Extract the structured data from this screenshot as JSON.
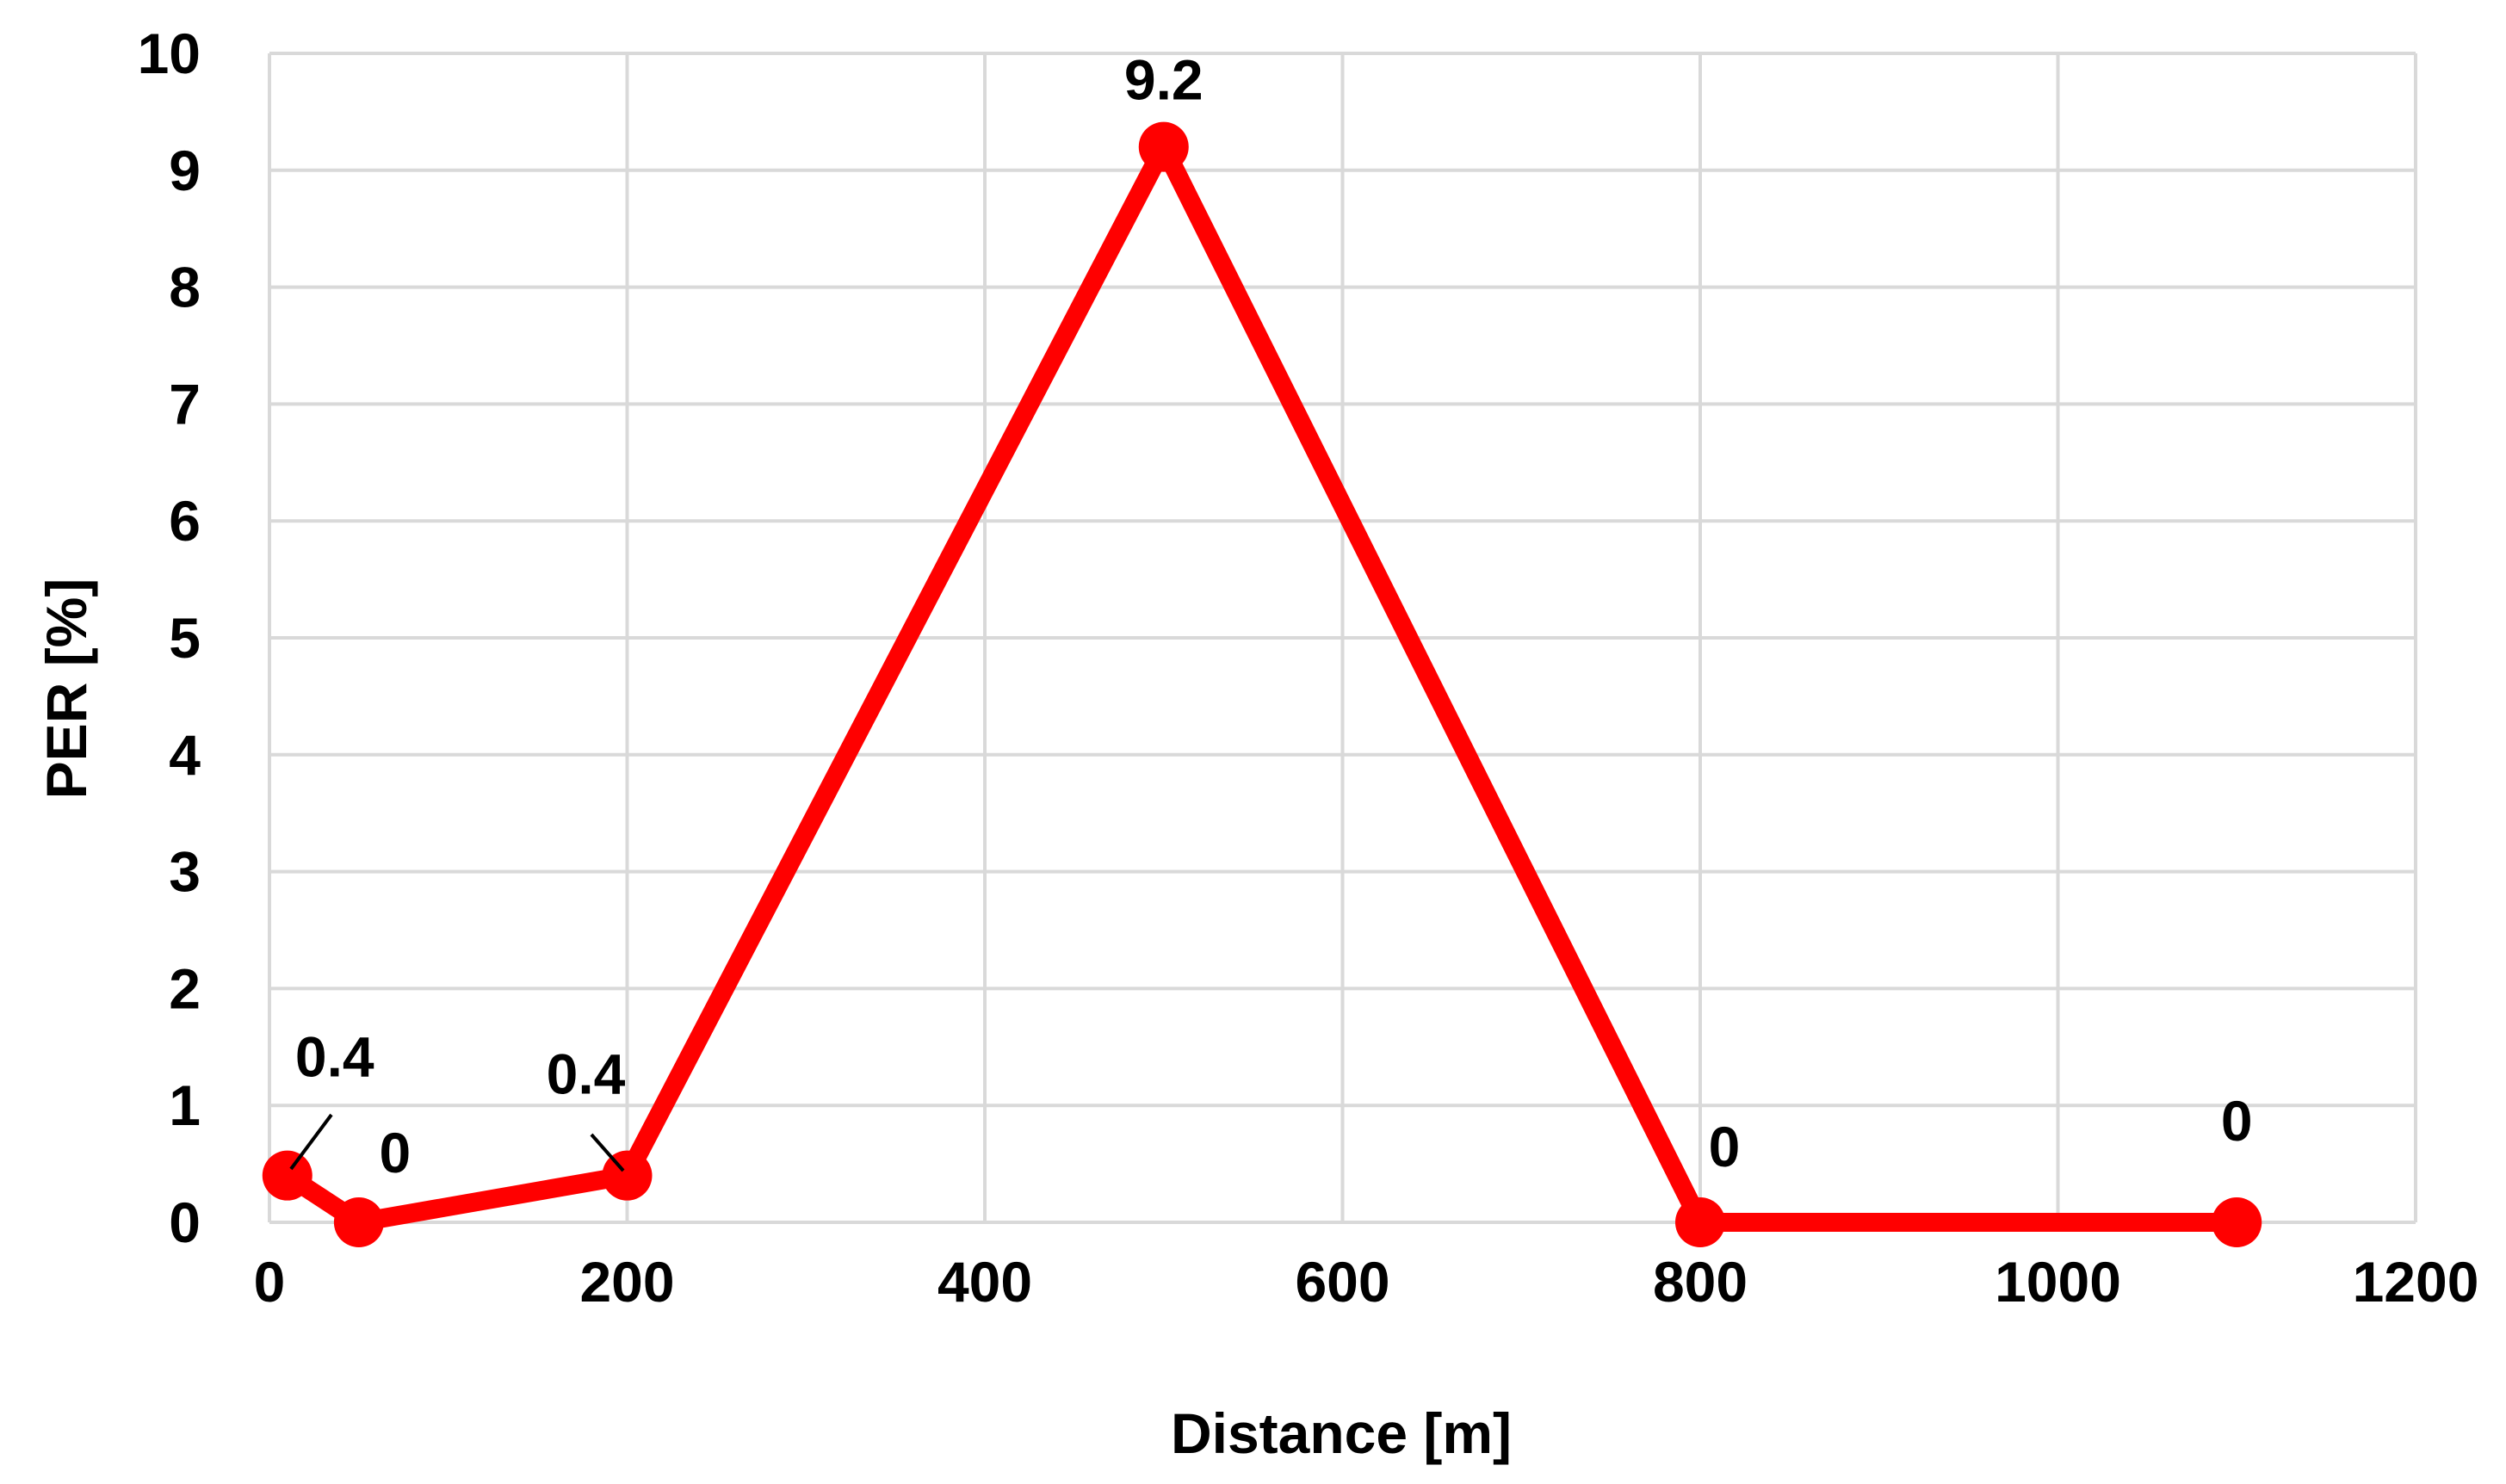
{
  "chart_data": {
    "type": "line",
    "title": "",
    "xlabel": "Distance [m]",
    "ylabel": "PER [%]",
    "xlim": [
      0,
      1200
    ],
    "ylim": [
      0,
      10
    ],
    "xticks": [
      0,
      200,
      400,
      600,
      800,
      1000,
      1200
    ],
    "yticks": [
      0,
      1,
      2,
      3,
      4,
      5,
      6,
      7,
      8,
      9,
      10
    ],
    "grid": true,
    "series": [
      {
        "name": "PER",
        "color": "#ff0000",
        "x": [
          10,
          50,
          200,
          500,
          800,
          1100
        ],
        "y": [
          0.4,
          0,
          0.4,
          9.2,
          0,
          0
        ],
        "labels": [
          "0.4",
          "0",
          "0.4",
          "9.2",
          "0",
          "0"
        ]
      }
    ]
  }
}
